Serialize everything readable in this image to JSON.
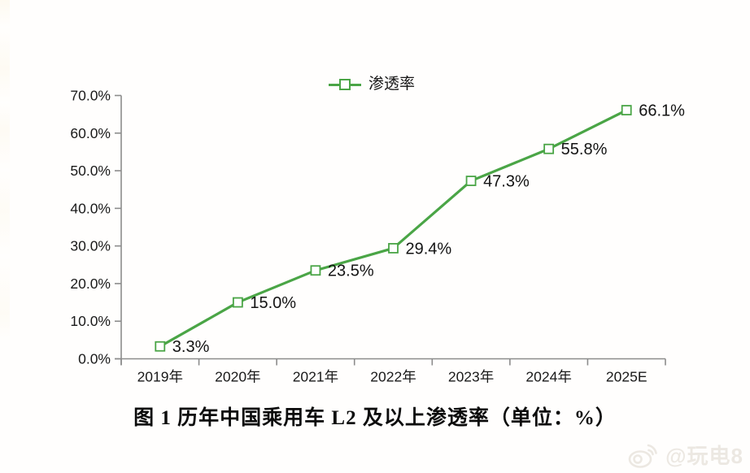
{
  "page": {
    "background": "#fffefd"
  },
  "legend": {
    "label": "渗透率"
  },
  "caption": "图 1  历年中国乘用车 L2 及以上渗透率（单位：%）",
  "watermark": {
    "icon": "weibo-icon",
    "text": "@玩电8"
  },
  "chart_data": {
    "type": "line",
    "title": "图 1  历年中国乘用车 L2 及以上渗透率（单位：%）",
    "categories": [
      "2019年",
      "2020年",
      "2021年",
      "2022年",
      "2023年",
      "2024年",
      "2025E"
    ],
    "series": [
      {
        "name": "渗透率",
        "values": [
          3.3,
          15.0,
          23.5,
          29.4,
          47.3,
          55.8,
          66.1
        ]
      }
    ],
    "data_labels": [
      "3.3%",
      "15.0%",
      "23.5%",
      "29.4%",
      "47.3%",
      "55.8%",
      "66.1%"
    ],
    "ylim": [
      0,
      70
    ],
    "ytick_step": 10,
    "ytick_labels": [
      "0.0%",
      "10.0%",
      "20.0%",
      "30.0%",
      "40.0%",
      "50.0%",
      "60.0%",
      "70.0%"
    ],
    "xlabel": "",
    "ylabel": "",
    "grid": false,
    "legend_position": "top",
    "marker": "hollow-square",
    "line_color": "#4aa546",
    "axis_color": "#8c8c8c",
    "label_color": "#141414"
  }
}
